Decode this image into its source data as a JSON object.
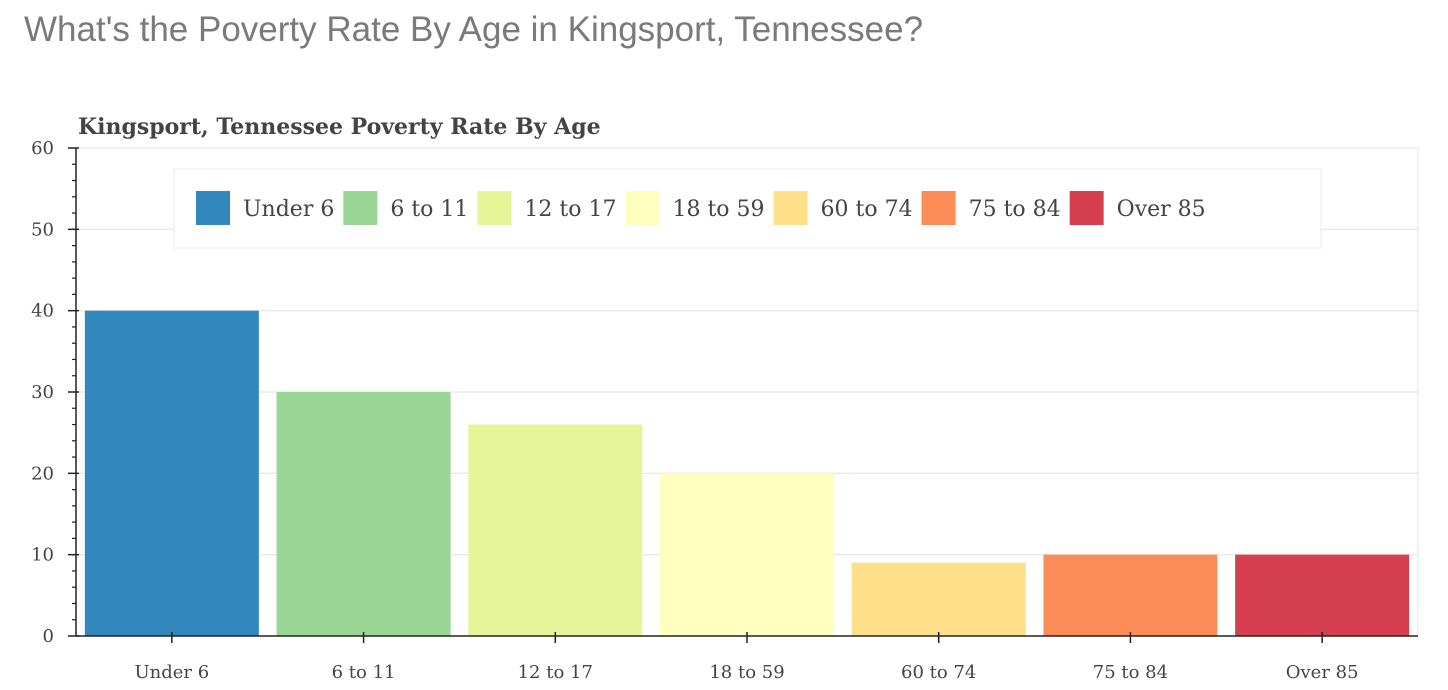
{
  "page": {
    "heading": "What's the Poverty Rate By Age in Kingsport, Tennessee?"
  },
  "chart_data": {
    "type": "bar",
    "title": "Kingsport, Tennessee Poverty Rate By Age",
    "xlabel": "",
    "ylabel": "",
    "categories": [
      "Under 6",
      "6 to 11",
      "12 to 17",
      "18 to 59",
      "60 to 74",
      "75 to 84",
      "Over 85"
    ],
    "values": [
      40,
      30,
      26,
      20,
      9,
      10,
      10
    ],
    "colors": [
      "#3288bd",
      "#99d594",
      "#e6f598",
      "#ffffbf",
      "#fee08b",
      "#fc8d59",
      "#d53e4f"
    ],
    "ylim": [
      0,
      60
    ],
    "yticks": [
      0,
      10,
      20,
      30,
      40,
      50,
      60
    ],
    "grid": true,
    "legend": {
      "placement": "top",
      "entries": [
        "Under 6",
        "6 to 11",
        "12 to 17",
        "18 to 59",
        "60 to 74",
        "75 to 84",
        "Over 85"
      ]
    }
  }
}
